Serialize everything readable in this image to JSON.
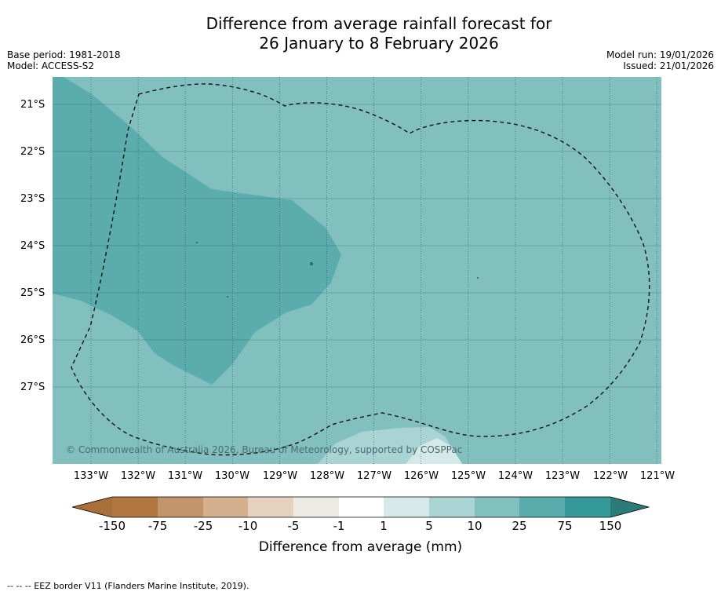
{
  "title": {
    "line1": "Difference from average rainfall forecast for",
    "line2": "26 January to 8 February 2026"
  },
  "meta": {
    "base_period": "Base period: 1981-2018",
    "model": "Model: ACCESS-S2",
    "model_run": "Model run: 19/01/2026",
    "issued": "Issued: 21/01/2026"
  },
  "map": {
    "latitude_labels": [
      "21°S",
      "22°S",
      "23°S",
      "24°S",
      "25°S",
      "26°S",
      "27°S"
    ],
    "longitude_labels": [
      "133°W",
      "132°W",
      "131°W",
      "130°W",
      "129°W",
      "128°W",
      "127°W",
      "126°W",
      "125°W",
      "124°W",
      "123°W",
      "122°W",
      "121°W"
    ],
    "copyright": "© Commonwealth of Australia 2026, Bureau of Meteorology, supported by COSPPac",
    "colors": {
      "class_10_25": "#82c0bf",
      "class_25_75": "#5bacad",
      "class_5_10": "#a9d4d3",
      "class_1_5": "#d4e9e8",
      "gridline": "#1f5a5c"
    }
  },
  "colorbar": {
    "ticks": [
      "-150",
      "-75",
      "-25",
      "-10",
      "-5",
      "-1",
      "1",
      "5",
      "10",
      "25",
      "75",
      "150"
    ],
    "colors": [
      "#a96f3a",
      "#b07840",
      "#c3956a",
      "#d4b08e",
      "#e5d1bd",
      "#eeebe5",
      "#ffffff",
      "#d4e9e8",
      "#a9d4d3",
      "#82c0bf",
      "#5bacad",
      "#359a97",
      "#2b7b78"
    ],
    "label": "Difference from average (mm)"
  },
  "footnote": "--  --  -- EEZ border V11 (Flanders Marine Institute, 2019)."
}
